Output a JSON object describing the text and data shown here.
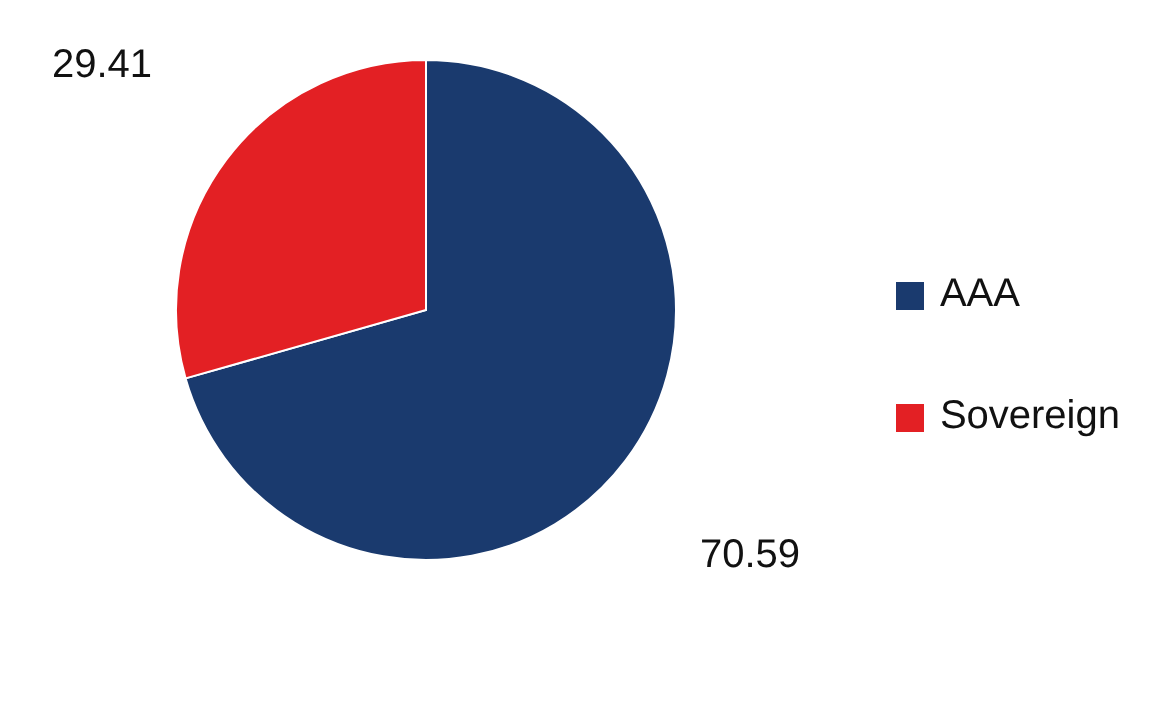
{
  "chart_data": {
    "type": "pie",
    "categories": [
      "AAA",
      "Sovereign"
    ],
    "values": [
      70.59,
      29.41
    ],
    "colors": [
      "#1a3a6e",
      "#e32024"
    ],
    "data_labels": true,
    "legend": "right"
  }
}
